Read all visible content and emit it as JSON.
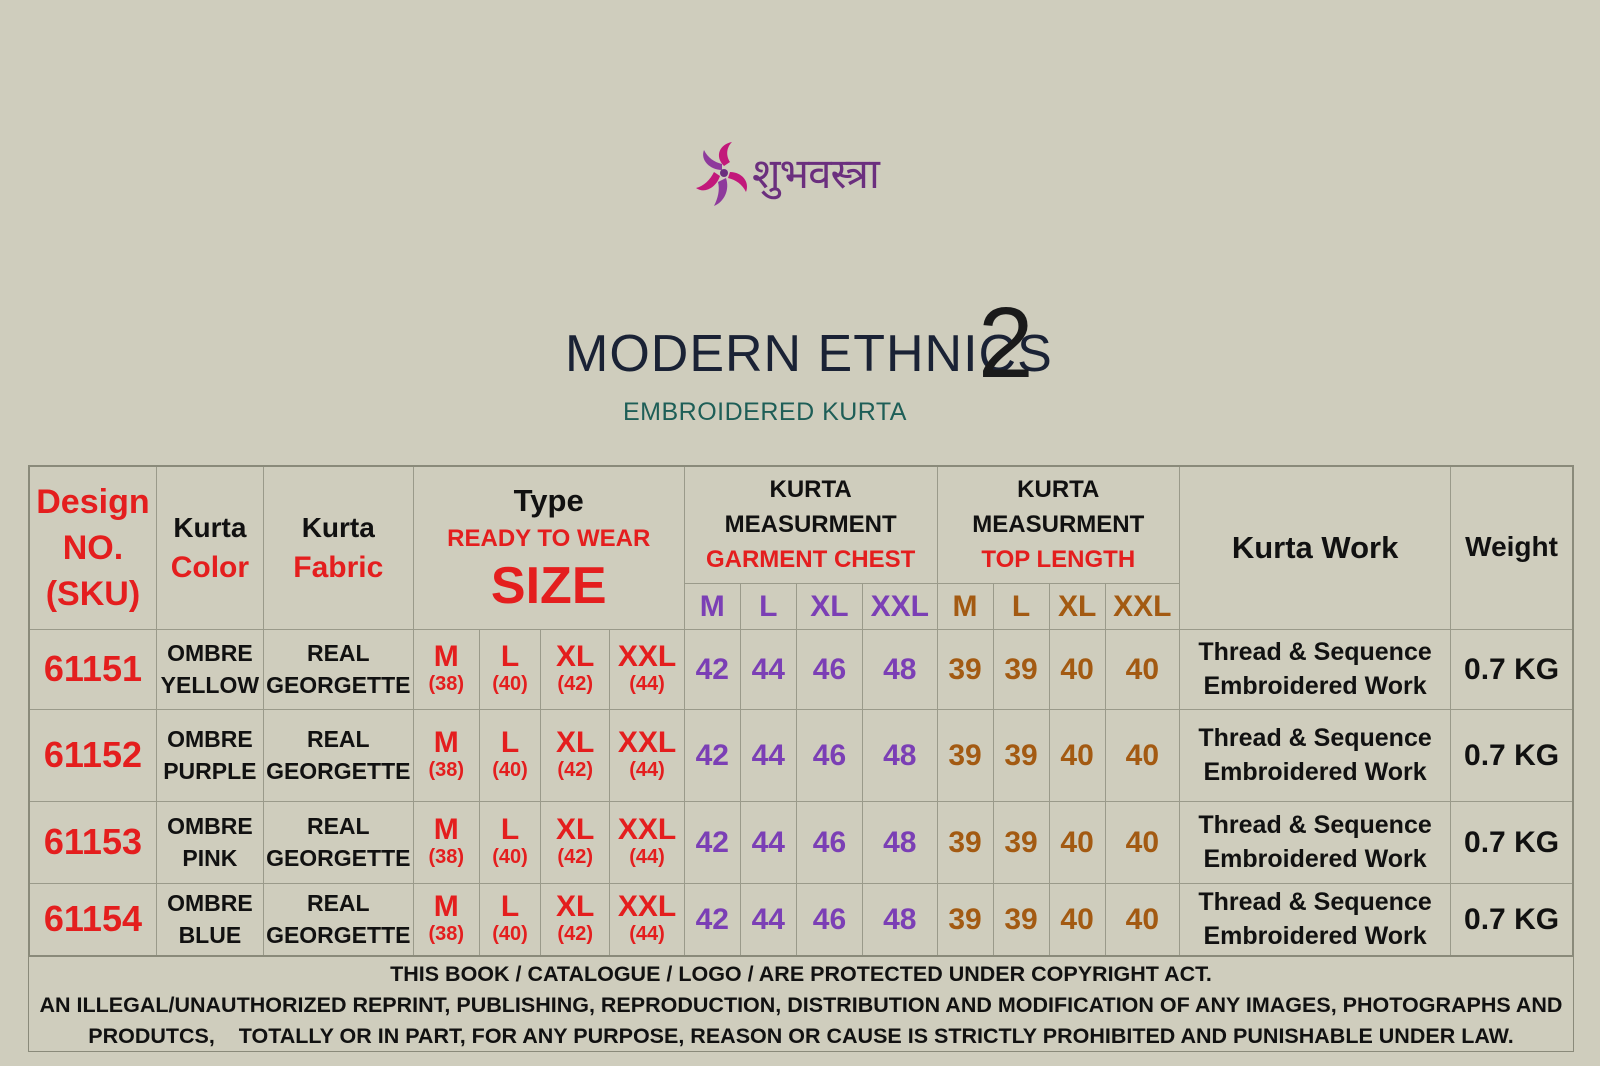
{
  "brand": {
    "logo_text": "शुभवस्त्रा"
  },
  "title": {
    "main": "MODERN ETHNICS",
    "number": "2",
    "subtitle": "EMBROIDERED KURTA"
  },
  "colors": {
    "background": "#cfcdbd",
    "red": "#e41e1e",
    "purple": "#7b3fb5",
    "brown": "#a35a12",
    "title": "#1a2235",
    "subtitle": "#1e5e57",
    "logo_magenta": "#c2187a",
    "logo_purple": "#6b2f7e"
  },
  "table": {
    "headers": {
      "design_line1": "Design",
      "design_line2": "NO.",
      "design_line3": "(SKU)",
      "color_line1": "Kurta",
      "color_line2": "Color",
      "fabric_line1": "Kurta",
      "fabric_line2": "Fabric",
      "type_line1": "Type",
      "type_line2": "READY TO WEAR",
      "type_line3": "SIZE",
      "chest_line1": "KURTA",
      "chest_line2": "MEASURMENT",
      "chest_line3": "GARMENT CHEST",
      "length_line1": "KURTA",
      "length_line2": "MEASURMENT",
      "length_line3": "TOP LENGTH",
      "work": "Kurta Work",
      "weight": "Weight",
      "chest_sizes": [
        "M",
        "L",
        "XL",
        "XXL"
      ],
      "length_sizes": [
        "M",
        "L",
        "XL",
        "XXL"
      ]
    },
    "rows": [
      {
        "sku": "61151",
        "color_line1": "OMBRE",
        "color_line2": "YELLOW",
        "fabric_line1": "REAL",
        "fabric_line2": "GEORGETTE",
        "sizes": [
          {
            "label": "M",
            "num": "(38)"
          },
          {
            "label": "L",
            "num": "(40)"
          },
          {
            "label": "XL",
            "num": "(42)"
          },
          {
            "label": "XXL",
            "num": "(44)"
          }
        ],
        "chest": [
          "42",
          "44",
          "46",
          "48"
        ],
        "length": [
          "39",
          "39",
          "40",
          "40"
        ],
        "work_line1": "Thread & Sequence",
        "work_line2": "Embroidered Work",
        "weight": "0.7 KG"
      },
      {
        "sku": "61152",
        "color_line1": "OMBRE",
        "color_line2": "PURPLE",
        "fabric_line1": "REAL",
        "fabric_line2": "GEORGETTE",
        "sizes": [
          {
            "label": "M",
            "num": "(38)"
          },
          {
            "label": "L",
            "num": "(40)"
          },
          {
            "label": "XL",
            "num": "(42)"
          },
          {
            "label": "XXL",
            "num": "(44)"
          }
        ],
        "chest": [
          "42",
          "44",
          "46",
          "48"
        ],
        "length": [
          "39",
          "39",
          "40",
          "40"
        ],
        "work_line1": "Thread & Sequence",
        "work_line2": "Embroidered Work",
        "weight": "0.7 KG"
      },
      {
        "sku": "61153",
        "color_line1": "OMBRE",
        "color_line2": "PINK",
        "fabric_line1": "REAL",
        "fabric_line2": "GEORGETTE",
        "sizes": [
          {
            "label": "M",
            "num": "(38)"
          },
          {
            "label": "L",
            "num": "(40)"
          },
          {
            "label": "XL",
            "num": "(42)"
          },
          {
            "label": "XXL",
            "num": "(44)"
          }
        ],
        "chest": [
          "42",
          "44",
          "46",
          "48"
        ],
        "length": [
          "39",
          "39",
          "40",
          "40"
        ],
        "work_line1": "Thread & Sequence",
        "work_line2": "Embroidered Work",
        "weight": "0.7 KG"
      },
      {
        "sku": "61154",
        "color_line1": "OMBRE",
        "color_line2": "BLUE",
        "fabric_line1": "REAL",
        "fabric_line2": "GEORGETTE",
        "sizes": [
          {
            "label": "M",
            "num": "(38)"
          },
          {
            "label": "L",
            "num": "(40)"
          },
          {
            "label": "XL",
            "num": "(42)"
          },
          {
            "label": "XXL",
            "num": "(44)"
          }
        ],
        "chest": [
          "42",
          "44",
          "46",
          "48"
        ],
        "length": [
          "39",
          "39",
          "40",
          "40"
        ],
        "work_line1": "Thread & Sequence",
        "work_line2": "Embroidered Work",
        "weight": "0.7 KG"
      }
    ]
  },
  "footer": {
    "line1": "THIS BOOK / CATALOGUE  / LOGO / ARE  PROTECTED UNDER COPYRIGHT ACT.",
    "line2": "AN ILLEGAL/UNAUTHORIZED REPRINT, PUBLISHING, REPRODUCTION, DISTRIBUTION AND MODIFICATION OF ANY IMAGES, PHOTOGRAPHS AND",
    "line3": "PRODUTCS,    TOTALLY OR IN PART, FOR ANY PURPOSE, REASON OR CAUSE IS STRICTLY PROHIBITED AND PUNISHABLE UNDER LAW."
  }
}
